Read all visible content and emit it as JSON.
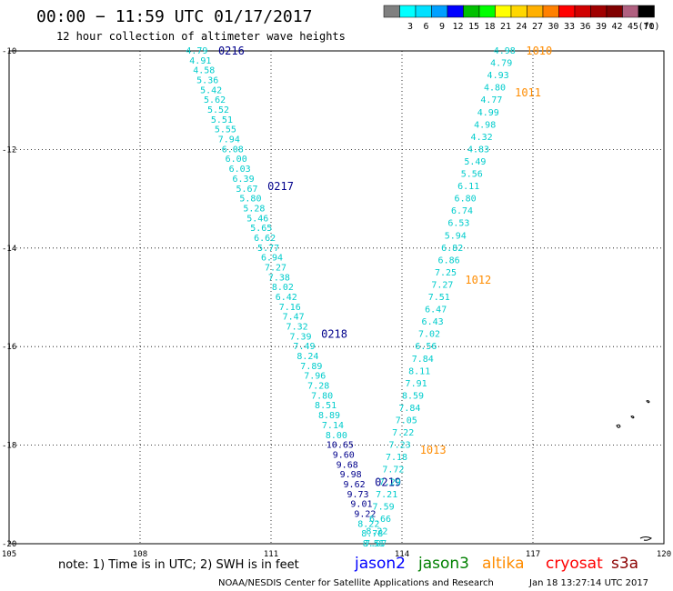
{
  "header": {
    "title": "00:00 − 11:59 UTC 01/17/2017",
    "subtitle": "12 hour collection of altimeter wave heights"
  },
  "legend": {
    "unit": "(ft)",
    "bins": [
      {
        "label": "",
        "color": "#808080"
      },
      {
        "label": "3",
        "color": "#00ffff"
      },
      {
        "label": "6",
        "color": "#00e0ff"
      },
      {
        "label": "9",
        "color": "#00a0ff"
      },
      {
        "label": "12",
        "color": "#0000ff"
      },
      {
        "label": "15",
        "color": "#00c000"
      },
      {
        "label": "18",
        "color": "#00ff00"
      },
      {
        "label": "21",
        "color": "#ffff00"
      },
      {
        "label": "24",
        "color": "#ffd700"
      },
      {
        "label": "27",
        "color": "#ffb000"
      },
      {
        "label": "30",
        "color": "#ff8000"
      },
      {
        "label": "33",
        "color": "#ff0000"
      },
      {
        "label": "36",
        "color": "#d00000"
      },
      {
        "label": "39",
        "color": "#a00000"
      },
      {
        "label": "42",
        "color": "#800000"
      },
      {
        "label": "45",
        "color": "#b06080"
      },
      {
        "label": "70",
        "color": "#000000"
      }
    ]
  },
  "map": {
    "lon_range": [
      105,
      120
    ],
    "lat_range": [
      -20,
      -10
    ],
    "lon_ticks": [
      "105",
      "108",
      "111",
      "114",
      "117",
      "120"
    ],
    "lat_ticks": [
      "-10",
      "-12",
      "-14",
      "-16",
      "-18",
      "-20"
    ]
  },
  "colors": {
    "cyan": "#00cccc",
    "blue": "#00008b",
    "orange": "#ff8c00",
    "jason2": "#0000ff",
    "jason3": "#008000",
    "altika": "#ff8c00",
    "cryosat": "#ff0000",
    "s3a": "#8b0000"
  },
  "tracks": [
    {
      "id": "jason2",
      "passes": [
        {
          "label": "0216",
          "lat": -10
        },
        {
          "label": "0217",
          "lat": -12.75
        },
        {
          "label": "0218",
          "lat": -15.75
        },
        {
          "label": "0219",
          "lat": -18.75
        }
      ],
      "start": {
        "lon": 109.3,
        "lat": -10
      },
      "end": {
        "lon": 113.4,
        "lat": -20
      },
      "values": [
        "4.79",
        "4.91",
        "4.58",
        "5.36",
        "5.42",
        "5.62",
        "5.52",
        "5.51",
        "5.55",
        "7.94",
        "6.08",
        "6.00",
        "6.03",
        "6.39",
        "5.67",
        "5.80",
        "5.28",
        "5.46",
        "5.65",
        "6.62",
        "5.77",
        "6.94",
        "7.27",
        "7.38",
        "8.02",
        "6.42",
        "7.16",
        "7.47",
        "7.32",
        "7.39",
        "7.49",
        "8.24",
        "7.89",
        "7.96",
        "7.28",
        "7.80",
        "8.51",
        "8.89",
        "7.14",
        "8.00",
        "10.65",
        "9.60",
        "9.68",
        "9.98",
        "9.62",
        "9.73",
        "9.01",
        "9.22",
        "8.22",
        "8.78",
        "7.07"
      ]
    },
    {
      "id": "altika",
      "passes": [
        {
          "label": "1010",
          "lat": -10
        },
        {
          "label": "1011",
          "lat": -10.85
        },
        {
          "label": "1012",
          "lat": -14.65
        },
        {
          "label": "1013",
          "lat": -18.1
        }
      ],
      "start": {
        "lon": 116.35,
        "lat": -10
      },
      "end": {
        "lon": 113.35,
        "lat": -20
      },
      "values": [
        "4.98",
        "4.79",
        "4.93",
        "4.80",
        "4.77",
        "4.99",
        "4.98",
        "4.32",
        "4.83",
        "5.49",
        "5.56",
        "6.11",
        "6.80",
        "6.74",
        "6.53",
        "5.94",
        "6.82",
        "6.86",
        "7.25",
        "7.27",
        "7.51",
        "6.47",
        "6.43",
        "7.02",
        "6.56",
        "7.84",
        "8.11",
        "7.91",
        "8.59",
        "7.84",
        "7.05",
        "7.22",
        "7.23",
        "7.18",
        "7.72",
        "7.29",
        "7.21",
        "7.59",
        "6.66",
        "8.22",
        "8.51"
      ]
    }
  ],
  "footer": {
    "note": "note: 1) Time is in UTC; 2) SWH is in feet",
    "satellites": [
      "jason2",
      "jason3",
      "altika",
      "cryosat",
      "s3a"
    ],
    "credit": "NOAA/NESDIS Center for Satellite Applications and Research",
    "timestamp": "Jan 18 13:27:14 UTC 2017"
  }
}
